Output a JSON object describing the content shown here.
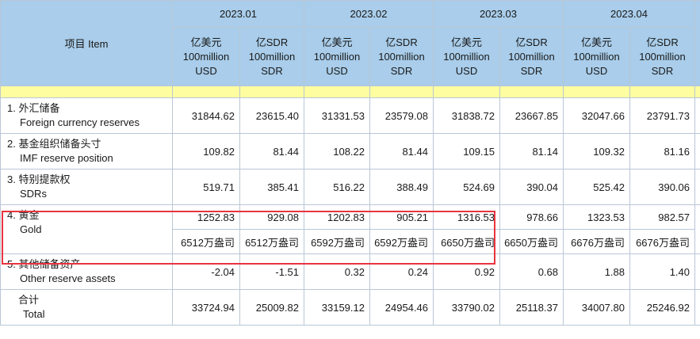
{
  "header": {
    "item_label": "项目 Item",
    "months": [
      "2023.01",
      "2023.02",
      "2023.03",
      "2023.04"
    ],
    "unit_usd": {
      "zh": "亿美元",
      "mid": "100million",
      "code": "USD"
    },
    "unit_sdr": {
      "zh": "亿SDR",
      "mid": "100million",
      "code": "SDR"
    }
  },
  "rows": [
    {
      "zh": "1.  外汇储备",
      "en": "Foreign currency reserves",
      "values": [
        "31844.62",
        "23615.40",
        "31331.53",
        "23579.08",
        "31838.72",
        "23667.85",
        "32047.66",
        "23791.73"
      ]
    },
    {
      "zh": "2.  基金组织储备头寸",
      "en": "IMF reserve position",
      "values": [
        "109.82",
        "81.44",
        "108.22",
        "81.44",
        "109.15",
        "81.14",
        "109.32",
        "81.16"
      ]
    },
    {
      "zh": "3.  特别提款权",
      "en": "SDRs",
      "values": [
        "519.71",
        "385.41",
        "516.22",
        "388.49",
        "524.69",
        "390.04",
        "525.42",
        "390.06"
      ]
    },
    {
      "zh": "4.  黄金",
      "en": "Gold",
      "values": [
        "1252.83",
        "929.08",
        "1202.83",
        "905.21",
        "1316.53",
        "978.66",
        "1323.53",
        "982.57"
      ],
      "ounces": [
        "6512万盎司",
        "6512万盎司",
        "6592万盎司",
        "6592万盎司",
        "6650万盎司",
        "6650万盎司",
        "6676万盎司",
        "6676万盎司"
      ]
    },
    {
      "zh": "5.  其他储备资产",
      "en": "Other reserve assets",
      "values": [
        "-2.04",
        "-1.51",
        "0.32",
        "0.24",
        "0.92",
        "0.68",
        "1.88",
        "1.40"
      ]
    },
    {
      "zh": "合计",
      "en": "Total",
      "values": [
        "33724.94",
        "25009.82",
        "33159.12",
        "24954.46",
        "33790.02",
        "25118.37",
        "34007.80",
        "25246.92"
      ]
    }
  ]
}
